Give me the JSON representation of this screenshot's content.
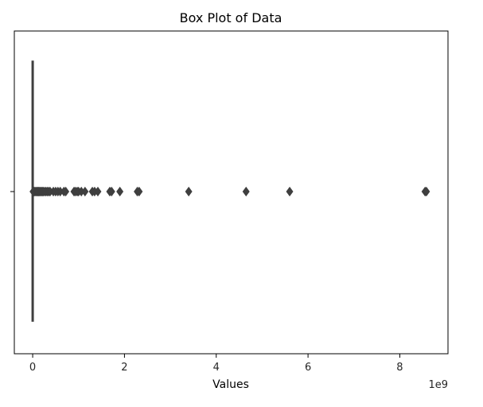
{
  "chart_data": {
    "type": "box",
    "title": "Box Plot of Data",
    "xlabel": "Values",
    "ylabel": "",
    "x_scale_label": "1e9",
    "xlim": [
      -0.4,
      9.05
    ],
    "xticks": [
      0,
      2,
      4,
      6,
      8
    ],
    "xtick_labels": [
      "0",
      "2",
      "4",
      "6",
      "8"
    ],
    "orientation": "horizontal",
    "grid": false,
    "box": {
      "min": 0,
      "q1": 0,
      "median": 0,
      "q3": 0.002,
      "max": 0.004
    },
    "outliers": [
      0.01,
      0.02,
      0.03,
      0.05,
      0.07,
      0.09,
      0.11,
      0.13,
      0.15,
      0.17,
      0.19,
      0.21,
      0.23,
      0.26,
      0.29,
      0.32,
      0.35,
      0.38,
      0.45,
      0.5,
      0.55,
      0.6,
      0.68,
      0.72,
      0.9,
      0.93,
      0.97,
      1.0,
      1.06,
      1.14,
      1.3,
      1.35,
      1.42,
      1.68,
      1.72,
      1.9,
      2.28,
      2.32,
      3.4,
      4.65,
      5.6,
      8.55,
      8.58
    ],
    "colors": {
      "box_line": "#3f3f3f",
      "outlier": "#3f3f3f",
      "frame": "#000000"
    }
  }
}
